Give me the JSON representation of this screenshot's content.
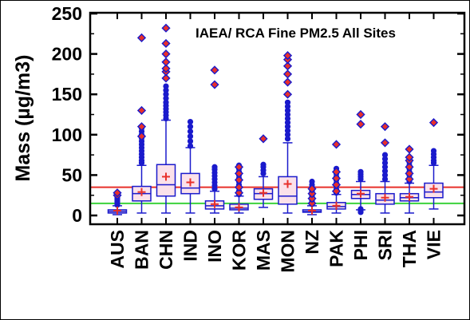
{
  "chart_data": {
    "type": "box",
    "title": "IAEA/ RCA Fine PM2.5 All Sites",
    "ylabel": "Mass (µg/m3)",
    "xlabel": "",
    "ylim": [
      0,
      250
    ],
    "yticks": [
      0,
      50,
      100,
      150,
      200,
      250
    ],
    "grid": false,
    "reference_lines": [
      {
        "y": 35,
        "color": "#e8302a"
      },
      {
        "y": 15,
        "color": "#3cd23c"
      }
    ],
    "colors": {
      "box_fill": "#fbe1ea",
      "box_stroke": "#1a1acc",
      "median": "#1a1acc",
      "mean_marker": "#e8302a",
      "outlier_fill": "#1a1acc",
      "extreme_fill": "#e8302a"
    },
    "categories": [
      "AUS",
      "BAN",
      "CHN",
      "IND",
      "INO",
      "KOR",
      "MAS",
      "MON",
      "NZ",
      "PAK",
      "PHI",
      "SRI",
      "THA",
      "VIE"
    ],
    "boxes": [
      {
        "name": "AUS",
        "whisker_low": 1,
        "q1": 3,
        "median": 5,
        "q3": 7,
        "whisker_high": 12,
        "mean": 6,
        "outliers": [
          13,
          15,
          17,
          19,
          21,
          23
        ],
        "extremes": [
          25,
          28
        ]
      },
      {
        "name": "BAN",
        "whisker_low": 3,
        "q1": 18,
        "median": 27,
        "q3": 36,
        "whisker_high": 62,
        "mean": 29,
        "outliers": [
          65,
          68,
          72,
          76,
          80,
          84,
          88,
          92,
          96,
          100,
          104,
          108
        ],
        "extremes": [
          98,
          110,
          130,
          220
        ]
      },
      {
        "name": "CHN",
        "whisker_low": 3,
        "q1": 24,
        "median": 38,
        "q3": 63,
        "whisker_high": 118,
        "mean": 48,
        "outliers": [
          120,
          124,
          128,
          132,
          136,
          140,
          145,
          150,
          155,
          160
        ],
        "extremes": [
          170,
          178,
          182,
          190,
          200,
          213,
          232
        ]
      },
      {
        "name": "IND",
        "whisker_low": 3,
        "q1": 27,
        "median": 34,
        "q3": 52,
        "whisker_high": 84,
        "mean": 41,
        "outliers": [
          86,
          92,
          98,
          104,
          110,
          116
        ],
        "extremes": []
      },
      {
        "name": "INO",
        "whisker_low": 3,
        "q1": 8,
        "median": 12,
        "q3": 18,
        "whisker_high": 30,
        "mean": 14,
        "outliers": [
          33,
          37,
          41,
          45,
          49,
          53,
          57,
          60
        ],
        "extremes": [
          162,
          180
        ]
      },
      {
        "name": "KOR",
        "whisker_low": 3,
        "q1": 7,
        "median": 9,
        "q3": 14,
        "whisker_high": 24,
        "mean": 10,
        "outliers": [
          26,
          30,
          34,
          38,
          42,
          46,
          50,
          54,
          58,
          62
        ],
        "extremes": [
          28,
          35,
          44,
          52,
          60
        ]
      },
      {
        "name": "MAS",
        "whisker_low": 10,
        "q1": 20,
        "median": 27,
        "q3": 33,
        "whisker_high": 48,
        "mean": 28,
        "outliers": [
          52,
          56,
          60,
          63
        ],
        "extremes": [
          95
        ]
      },
      {
        "name": "MON",
        "whisker_low": 3,
        "q1": 14,
        "median": 24,
        "q3": 48,
        "whisker_high": 90,
        "mean": 39,
        "outliers": [
          95,
          100,
          105,
          110,
          115,
          120,
          125,
          130,
          135,
          140
        ],
        "extremes": [
          150,
          165,
          175,
          185,
          193,
          198
        ]
      },
      {
        "name": "NZ",
        "whisker_low": 1,
        "q1": 4,
        "median": 5,
        "q3": 7,
        "whisker_high": 12,
        "mean": 6,
        "outliers": [
          14,
          16,
          18,
          20,
          22,
          24,
          26,
          28,
          30,
          32,
          35,
          38,
          42
        ],
        "extremes": [
          15,
          21,
          27,
          33
        ]
      },
      {
        "name": "PAK",
        "whisker_low": 3,
        "q1": 8,
        "median": 11,
        "q3": 16,
        "whisker_high": 26,
        "mean": 12,
        "outliers": [
          28,
          32,
          36,
          40,
          44,
          48,
          52,
          55,
          58
        ],
        "extremes": [
          30,
          38,
          46,
          54,
          88
        ]
      },
      {
        "name": "PHI",
        "whisker_low": 7,
        "q1": 21,
        "median": 26,
        "q3": 31,
        "whisker_high": 42,
        "mean": 27,
        "outliers": [
          4,
          6,
          8,
          45,
          48,
          51,
          54
        ],
        "extremes": [
          113,
          125
        ]
      },
      {
        "name": "SRI",
        "whisker_low": 3,
        "q1": 14,
        "median": 19,
        "q3": 27,
        "whisker_high": 42,
        "mean": 22,
        "outliers": [
          45,
          50,
          55,
          60,
          65,
          70,
          75
        ],
        "extremes": [
          90,
          110
        ]
      },
      {
        "name": "THA",
        "whisker_low": 3,
        "q1": 18,
        "median": 22,
        "q3": 27,
        "whisker_high": 40,
        "mean": 23,
        "outliers": [
          42,
          46,
          50,
          54,
          58,
          62,
          66
        ],
        "extremes": [
          45,
          52,
          60,
          68,
          72,
          82
        ]
      },
      {
        "name": "VIE",
        "whisker_low": 8,
        "q1": 22,
        "median": 29,
        "q3": 40,
        "whisker_high": 62,
        "mean": 33,
        "outliers": [
          65,
          68,
          72,
          76,
          80
        ],
        "extremes": [
          115
        ]
      }
    ]
  }
}
